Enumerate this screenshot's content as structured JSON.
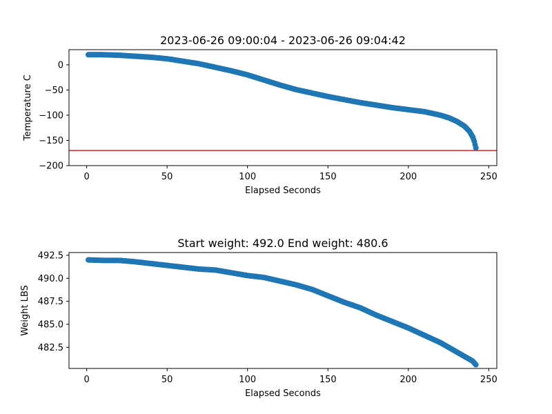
{
  "chart_data": [
    {
      "type": "scatter",
      "title": "2023-06-26 09:00:04 - 2023-06-26 09:04:42",
      "xlabel": "Elapsed Seconds",
      "ylabel": "Temperature C",
      "xlim": [
        -11,
        255
      ],
      "ylim": [
        -200,
        30
      ],
      "xticks": [
        0,
        50,
        100,
        150,
        200,
        250
      ],
      "xtick_labels": [
        "0",
        "50",
        "100",
        "150",
        "200",
        "250"
      ],
      "yticks": [
        0,
        -50,
        -100,
        -150,
        -200
      ],
      "ytick_labels": [
        "0",
        "−50",
        "−100",
        "−150",
        "−200"
      ],
      "grid": false,
      "marker_color": "#1f77b4",
      "reference_line": {
        "y": -170,
        "color": "#d62728"
      },
      "anchors": [
        [
          1,
          20
        ],
        [
          10,
          20
        ],
        [
          20,
          19
        ],
        [
          30,
          17
        ],
        [
          40,
          15
        ],
        [
          50,
          12
        ],
        [
          60,
          7
        ],
        [
          70,
          2
        ],
        [
          80,
          -5
        ],
        [
          90,
          -12
        ],
        [
          100,
          -20
        ],
        [
          110,
          -30
        ],
        [
          120,
          -40
        ],
        [
          130,
          -49
        ],
        [
          140,
          -56
        ],
        [
          150,
          -63
        ],
        [
          160,
          -69
        ],
        [
          170,
          -75
        ],
        [
          180,
          -80
        ],
        [
          190,
          -85
        ],
        [
          200,
          -89
        ],
        [
          210,
          -93
        ],
        [
          220,
          -100
        ],
        [
          225,
          -105
        ],
        [
          230,
          -112
        ],
        [
          235,
          -122
        ],
        [
          238,
          -132
        ],
        [
          240,
          -143
        ],
        [
          241,
          -152
        ],
        [
          242,
          -165
        ]
      ]
    },
    {
      "type": "scatter",
      "title": "Start weight: 492.0 End weight: 480.6",
      "xlabel": "Elapsed Seconds",
      "ylabel": "Weight LBS",
      "xlim": [
        -11,
        255
      ],
      "ylim": [
        480.2,
        492.8
      ],
      "xticks": [
        0,
        50,
        100,
        150,
        200,
        250
      ],
      "xtick_labels": [
        "0",
        "50",
        "100",
        "150",
        "200",
        "250"
      ],
      "yticks": [
        482.5,
        485.0,
        487.5,
        490.0,
        492.5
      ],
      "ytick_labels": [
        "482.5",
        "485.0",
        "487.5",
        "490.0",
        "492.5"
      ],
      "grid": false,
      "marker_color": "#1f77b4",
      "anchors": [
        [
          1,
          492.0
        ],
        [
          10,
          491.95
        ],
        [
          20,
          491.95
        ],
        [
          30,
          491.8
        ],
        [
          40,
          491.6
        ],
        [
          50,
          491.4
        ],
        [
          60,
          491.2
        ],
        [
          70,
          491.0
        ],
        [
          80,
          490.9
        ],
        [
          90,
          490.6
        ],
        [
          100,
          490.3
        ],
        [
          110,
          490.1
        ],
        [
          120,
          489.7
        ],
        [
          130,
          489.3
        ],
        [
          140,
          488.8
        ],
        [
          150,
          488.1
        ],
        [
          160,
          487.4
        ],
        [
          170,
          486.8
        ],
        [
          180,
          486.0
        ],
        [
          190,
          485.3
        ],
        [
          200,
          484.6
        ],
        [
          210,
          483.8
        ],
        [
          220,
          483.0
        ],
        [
          230,
          482.0
        ],
        [
          240,
          481.0
        ],
        [
          242,
          480.6
        ]
      ]
    }
  ]
}
